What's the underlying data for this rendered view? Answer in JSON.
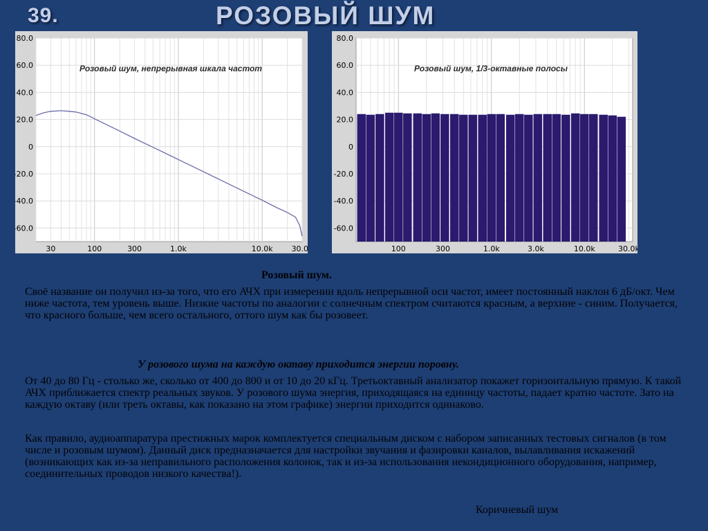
{
  "slide": {
    "number": "39.",
    "title": "РОЗОВЫЙ  ШУМ"
  },
  "charts": {
    "left": {
      "title": "Розовый шум, непрерывная шкала частот",
      "y_ticks": [
        "80.0",
        "60.0",
        "40.0",
        "20.0",
        "0",
        "-20.0",
        "-40.0",
        "-60.0"
      ],
      "x_ticks": [
        "30",
        "100",
        "300",
        "1.0k",
        "10.0k",
        "30.0k"
      ]
    },
    "right": {
      "title": "Розовый шум, 1/3-октавные полосы",
      "y_ticks": [
        "80.0",
        "60.0",
        "40.0",
        "20.0",
        "0",
        "-20.0",
        "-40.0",
        "-60.0"
      ],
      "x_ticks": [
        "100",
        "300",
        "1.0k",
        "3.0k",
        "10.0k",
        "30.0k"
      ]
    }
  },
  "chart_data": [
    {
      "type": "line",
      "title": "Розовый шум, непрерывная шкала частот",
      "x_scale": "log",
      "xlim": [
        20,
        30000
      ],
      "ylim": [
        -70,
        80
      ],
      "grid": true,
      "series": [
        {
          "color": "#6a6aaa",
          "x": [
            20,
            25,
            30,
            40,
            50,
            60,
            80,
            100,
            200,
            300,
            500,
            1000,
            2000,
            5000,
            10000,
            15000,
            20000,
            25000,
            28000,
            30000
          ],
          "y": [
            23,
            25,
            26,
            26.5,
            26,
            25.5,
            23.5,
            20.5,
            11.5,
            6,
            -0.5,
            -9.5,
            -18.5,
            -30.5,
            -39.5,
            -45,
            -48.5,
            -52,
            -58,
            -66
          ]
        }
      ]
    },
    {
      "type": "bar",
      "title": "Розовый шум, 1/3-октавные полосы",
      "x_scale": "log",
      "xlim": [
        35,
        33000
      ],
      "ylim": [
        -70,
        80
      ],
      "grid": true,
      "bar_color": "#2b1a6e",
      "series": [
        {
          "centers": [
            40,
            50,
            63,
            80,
            100,
            125,
            160,
            200,
            250,
            315,
            400,
            500,
            630,
            800,
            1000,
            1250,
            1600,
            2000,
            2500,
            3150,
            4000,
            5000,
            6300,
            8000,
            10000,
            12500,
            16000,
            20000,
            25000
          ],
          "values": [
            24,
            23.5,
            24,
            25,
            25,
            24.5,
            24.5,
            24,
            24.5,
            24,
            24,
            23.5,
            23.5,
            23.5,
            24,
            24,
            23.5,
            24,
            23.5,
            24,
            24,
            24,
            23.5,
            24.5,
            24,
            24,
            23.5,
            23,
            22
          ]
        }
      ]
    }
  ],
  "text": {
    "subtitle": "Розовый  шум.",
    "paragraph1": "Своё название он получил из-за того, что его АЧХ при измерении вдоль непрерывной оси частот, имеет постоянный наклон 6 дБ/окт. Чем ниже частота, тем уровень выше. Низкие частоты по аналогии с солнечным спектром считаются красным, а верхние - синим. Получается, что красного больше, чем всего остального, оттого шум как бы розовеет.",
    "emphasis": "У розового шума на каждую октаву приходится энергии поровну.",
    "paragraph2": "От 40 до 80 Гц - столько же, сколько от 400 до 800 и от 10 до 20 кГц. Третьоктавный анализатор покажет горизонтальную прямую. К такой АЧХ приближается спектр реальных звуков. У розового шума энергия, приходящаяся на единицу частоты, падает кратно частоте. Зато на каждую октаву (или треть октавы, как показано на этом графике) энергии приходится одинаково.",
    "paragraph3": "Как правило, аудиоаппаратура престижных марок комплектуется специальным диском с набором записанных тестовых сигналов (в том числе и розовым шумом). Данный диск предназначается для настройки звучания и фазировки каналов, вылавливания искажений (возникающих как из-за неправильного расположения колонок, так и из-за использования некондиционного оборудования, например, соединительных проводов низкого качества!).",
    "next_title": "Коричневый  шум"
  }
}
